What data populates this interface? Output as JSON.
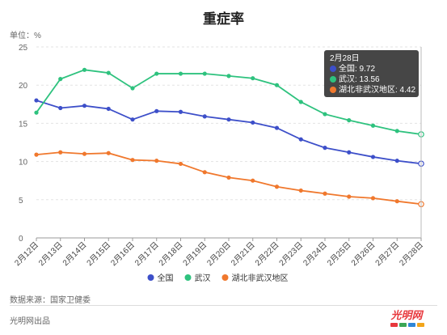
{
  "title": "重症率",
  "unit_label": "单位：%",
  "source": "数据来源：国家卫健委",
  "brand": "光明网出品",
  "logo": {
    "text": "光明网",
    "colors": [
      "#e8383d",
      "#3aa655",
      "#2f86d6",
      "#f2a51a"
    ]
  },
  "chart_data": {
    "type": "line",
    "categories": [
      "2月12日",
      "2月13日",
      "2月14日",
      "2月15日",
      "2月16日",
      "2月17日",
      "2月18日",
      "2月19日",
      "2月20日",
      "2月21日",
      "2月22日",
      "2月23日",
      "2月24日",
      "2月25日",
      "2月26日",
      "2月27日",
      "2月28日"
    ],
    "series": [
      {
        "name": "全国",
        "color": "#3d4fc9",
        "values": [
          18.0,
          17.0,
          17.3,
          16.9,
          15.5,
          16.6,
          16.5,
          15.9,
          15.5,
          15.1,
          14.4,
          12.9,
          11.8,
          11.2,
          10.6,
          10.1,
          9.72
        ]
      },
      {
        "name": "武汉",
        "color": "#2ec27e",
        "values": [
          16.4,
          20.8,
          22.0,
          21.6,
          19.6,
          21.5,
          21.5,
          21.5,
          21.2,
          20.9,
          20.0,
          17.8,
          16.2,
          15.4,
          14.7,
          14.0,
          13.56
        ]
      },
      {
        "name": "湖北非武汉地区",
        "color": "#f0782d",
        "values": [
          10.9,
          11.2,
          11.0,
          11.1,
          10.2,
          10.1,
          9.7,
          8.6,
          7.9,
          7.5,
          6.7,
          6.2,
          5.8,
          5.4,
          5.2,
          4.8,
          4.42
        ]
      }
    ],
    "ylim": [
      0,
      25
    ],
    "yticks": [
      0,
      5,
      10,
      15,
      20,
      25
    ],
    "grid": true,
    "legend": "bottom",
    "tooltip": {
      "title": "2月28日",
      "index": 16,
      "lines": [
        "全国: 9.72",
        "武汉: 13.56",
        "湖北非武汉地区: 4.42"
      ]
    }
  }
}
